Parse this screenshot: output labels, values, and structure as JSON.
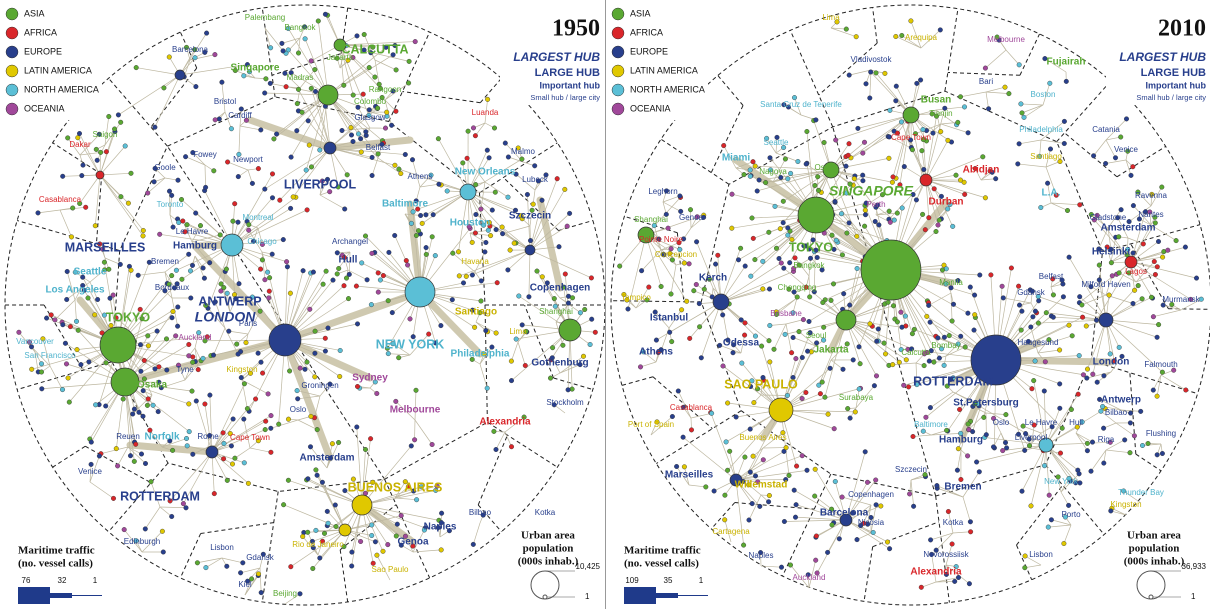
{
  "panels": [
    {
      "year": "1950",
      "continents": [
        "ASIA",
        "AFRICA",
        "EUROPE",
        "LATIN AMERICA",
        "NORTH AMERICA",
        "OCEANIA"
      ],
      "hub_levels": [
        "LARGEST HUB",
        "LARGE HUB",
        "Important hub",
        "Small hub / large city"
      ],
      "traffic_legend": {
        "title": [
          "Maritime traffic",
          "(no. vessel calls)"
        ],
        "values": [
          "76",
          "32",
          "1"
        ]
      },
      "population_legend": {
        "title": [
          "Urban area",
          "population",
          "(000s inhab.)"
        ],
        "values": [
          "10,425",
          "1"
        ]
      },
      "places": [
        "CALCUTTA",
        "Singapore",
        "Bangkok",
        "Palembang",
        "Jakarta",
        "Madras",
        "Rangoon",
        "Colombo",
        "Barcelona",
        "Bristol",
        "Cardiff",
        "Glasgow",
        "Belfast",
        "Newport",
        "LIVERPOOL",
        "Saigon",
        "Dakar",
        "Casablanca",
        "MARSEILLES",
        "Goole",
        "Fowey",
        "Toronto",
        "Montreal",
        "Chicago",
        "Le Havre",
        "Hamburg",
        "Bremen",
        "Archangel",
        "Hull",
        "ANTWERP",
        "LONDON",
        "Bordeaux",
        "Paris",
        "Auckland",
        "Seattle",
        "Los Angeles",
        "TOKYO",
        "Vancouver",
        "San Francisco",
        "Osaka",
        "Tyne",
        "Kingston",
        "Groningen",
        "Oslo",
        "Sydney",
        "Melbourne",
        "Cape Town",
        "Amsterdam",
        "Norfolk",
        "Rome",
        "Reuen",
        "Venice",
        "ROTTERDAM",
        "Edinburgh",
        "Lisbon",
        "Gdansk",
        "Kiel",
        "Beijing",
        "BUENOS AIRES",
        "Rio de Janeiro",
        "Genoa",
        "Naples",
        "Sao Paulo",
        "Bilbao",
        "Kotka",
        "Alexandria",
        "Luanda",
        "Malmo",
        "Athens",
        "New Orleans",
        "Lubeck",
        "Baltimore",
        "Houston",
        "Szczecin",
        "Havana",
        "Copenhagen",
        "Santiago",
        "Lima",
        "Shanghai",
        "NEW YORK",
        "Philadelphia",
        "Gothenburg",
        "Stockholm"
      ]
    },
    {
      "year": "2010",
      "continents": [
        "ASIA",
        "AFRICA",
        "EUROPE",
        "LATIN AMERICA",
        "NORTH AMERICA",
        "OCEANIA"
      ],
      "hub_levels": [
        "LARGEST HUB",
        "LARGE HUB",
        "Important hub",
        "Small hub / large city"
      ],
      "traffic_legend": {
        "title": [
          "Maritime traffic",
          "(no. vessel calls)"
        ],
        "values": [
          "109",
          "35",
          "1"
        ]
      },
      "population_legend": {
        "title": [
          "Urban area",
          "population",
          "(000s inhab.)"
        ],
        "values": [
          "36,933",
          "1"
        ]
      },
      "places": [
        "Lima",
        "Arequipa",
        "Melbourne",
        "Fujairah",
        "Vladivostok",
        "Busan",
        "Tianjin",
        "Bari",
        "Boston",
        "Philadelphia",
        "Santiago",
        "L.A.",
        "Santa Cruz de Tenerife",
        "Cape Town",
        "Abidjan",
        "Durban",
        "Perth",
        "SINGAPORE",
        "Miami",
        "Seattle",
        "Nagoya",
        "Osaka",
        "TOKYO",
        "Shanghai",
        "Leghorn",
        "Genoa",
        "Pointe Noire",
        "Concepcion",
        "Kerch",
        "Istanbul",
        "Athens",
        "Odessa",
        "Bangkok",
        "Chongqing",
        "Brisbane",
        "Seoul",
        "Jakarta",
        "Manila",
        "Bombay",
        "Calcutta",
        "Surabaya",
        "SAO PAULO",
        "Casablanca",
        "Port of Spain",
        "Buenos Aires",
        "Marseilles",
        "Willemstad",
        "Cartagena",
        "Barcelona",
        "Naples",
        "Auckland",
        "Nicosia",
        "Novorossiisk",
        "Alexandria",
        "Kotka",
        "Copenhagen",
        "Bremen",
        "Szczecin",
        "Hamburg",
        "St.Petersburg",
        "ROTTERDAM",
        "Oslo",
        "Le Havre",
        "Liverpool",
        "Hull",
        "Bilbao",
        "Riga",
        "Flushing",
        "Antwerp",
        "London",
        "Falmouth",
        "Haugesund",
        "Gdansk",
        "Belfast",
        "Milford Haven",
        "Helsinki",
        "Amsterdam",
        "Lagos",
        "Murmansk",
        "Nantes",
        "Gladstone",
        "Catania",
        "Venice",
        "Ravenna",
        "Tampico",
        "Baltimore",
        "New York",
        "Porto",
        "Lisbon",
        "Kingston",
        "Thunder Bay"
      ]
    }
  ]
}
